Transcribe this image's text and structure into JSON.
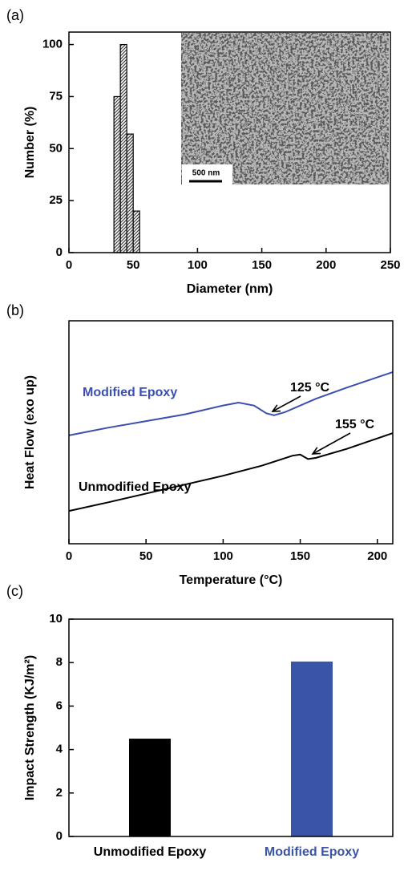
{
  "chart_data": [
    {
      "type": "histogram",
      "panel": "(a)",
      "x_label": "Diameter (nm)",
      "y_label": "Number (%)",
      "bins": [
        35,
        40,
        45,
        50,
        55
      ],
      "values": [
        75,
        100,
        57,
        20
      ],
      "color": "#444444",
      "xlim": [
        0,
        250
      ],
      "xticks": [
        0,
        50,
        100,
        150,
        200,
        250
      ],
      "ylim": [
        0,
        106
      ],
      "yticks": [
        0,
        25,
        50,
        75,
        100
      ],
      "inset_label": "500 nm"
    },
    {
      "type": "line",
      "panel": "(b)",
      "x_label": "Temperature (°C)",
      "y_label": "Heat Flow (exo up)",
      "xlim": [
        0,
        210
      ],
      "xticks": [
        0,
        50,
        100,
        150,
        200
      ],
      "ylim": [
        0,
        10
      ],
      "series": [
        {
          "name": "Modified Epoxy",
          "color": "#3a4fb0",
          "x": [
            0,
            25,
            50,
            75,
            100,
            110,
            120,
            128,
            133,
            140,
            160,
            180,
            210
          ],
          "values": [
            4.86,
            5.2,
            5.5,
            5.8,
            6.2,
            6.33,
            6.2,
            5.85,
            5.76,
            5.9,
            6.5,
            7.0,
            7.7
          ]
        },
        {
          "name": "Unmodified Epoxy",
          "color": "#000000",
          "x": [
            0,
            25,
            50,
            75,
            100,
            125,
            145,
            150,
            155,
            160,
            180,
            210
          ],
          "values": [
            1.47,
            1.85,
            2.25,
            2.65,
            3.05,
            3.5,
            3.95,
            4.0,
            3.8,
            3.85,
            4.25,
            4.96
          ]
        }
      ],
      "annotations": [
        "125 °C",
        "155 °C"
      ]
    },
    {
      "type": "bar",
      "panel": "(c)",
      "y_label": "Impact Strength (KJ/m²)",
      "categories": [
        "Unmodified Epoxy",
        "Modified Epoxy"
      ],
      "values": [
        4.5,
        8.05
      ],
      "colors": [
        "#000000",
        "#3a55a8"
      ],
      "ylim": [
        0,
        10
      ],
      "yticks": [
        0,
        2,
        4,
        6,
        8,
        10
      ]
    }
  ]
}
